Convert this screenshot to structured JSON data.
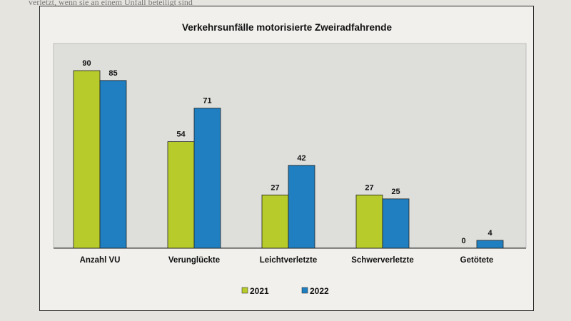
{
  "page_text": "verletzt, wenn sie an einem Unfall beteiligt sind",
  "colors": {
    "2021": "#b7cb2b",
    "2022": "#1f7fc0",
    "plot_bg": "#dedfdb"
  },
  "chart_data": {
    "type": "bar",
    "title": "Verkehrsunfälle motorisierte Zweiradfahrende",
    "categories": [
      "Anzahl VU",
      "Verunglückte",
      "Leichtverletzte",
      "Schwerverletzte",
      "Getötete"
    ],
    "series": [
      {
        "name": "2021",
        "values": [
          90,
          54,
          27,
          27,
          0
        ]
      },
      {
        "name": "2022",
        "values": [
          85,
          71,
          42,
          25,
          4
        ]
      }
    ],
    "ylim": [
      0,
      90
    ],
    "grid": false,
    "legend": "bottom"
  }
}
